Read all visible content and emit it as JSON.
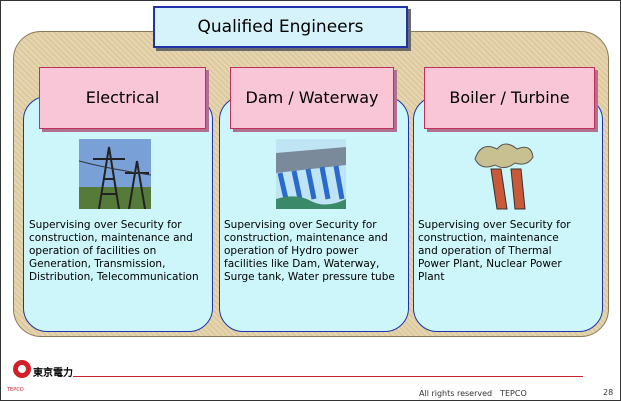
{
  "title": "Qualified Engineers",
  "columns": [
    {
      "heading": "Electrical",
      "description": "Supervising over Security for construction, maintenance and operation of facilities on Generation, Transmission, Distribution, Telecommunication"
    },
    {
      "heading": "Dam / Waterway",
      "description": "Supervising over Security for construction, maintenance and operation of Hydro power facilities like Dam, Waterway, Surge tank, Water pressure tube"
    },
    {
      "heading": "Boiler / Turbine",
      "description": "Supervising over Security for construction, maintenance and operation of Thermal Power Plant, Nuclear Power Plant"
    }
  ],
  "footer": {
    "logo": "東京電力",
    "logo_small": "TEPCO",
    "rights": "All rights reserved　TEPCO",
    "page": "28"
  }
}
